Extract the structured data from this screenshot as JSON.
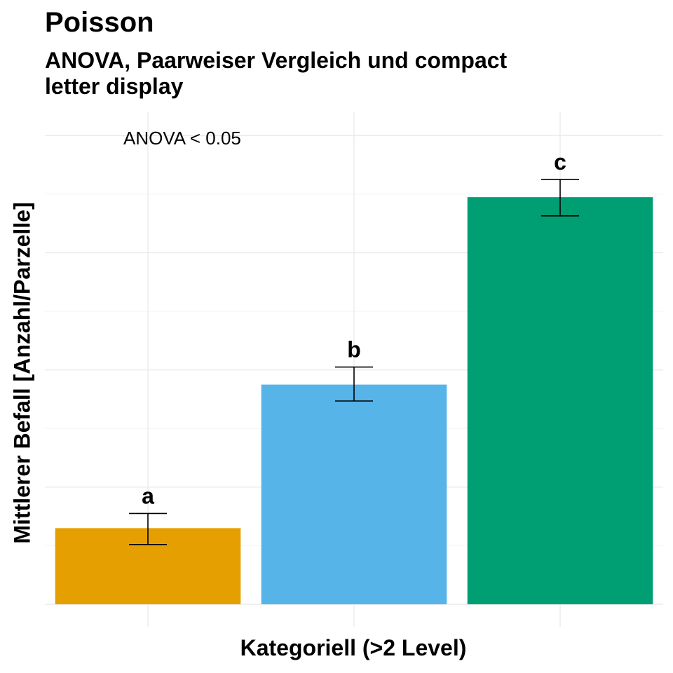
{
  "header": {
    "title": "Poisson",
    "subtitle": "ANOVA, Paarweiser Vergleich und compact letter display"
  },
  "chart_data": {
    "type": "bar",
    "title": "Poisson",
    "subtitle": "ANOVA, Paarweiser Vergleich und compact letter display",
    "xlabel": "Kategoriell (>2 Level)",
    "ylabel": "Mittlerer Befall [Anzahl/Parzelle]",
    "categories": [
      "",
      "",
      ""
    ],
    "values": [
      1.3,
      3.75,
      6.95
    ],
    "error_low": [
      1.02,
      3.47,
      6.63
    ],
    "error_high": [
      1.55,
      4.05,
      7.25
    ],
    "letters": [
      "a",
      "b",
      "c"
    ],
    "colors": [
      "#E69F00",
      "#56B4E9",
      "#009E73"
    ],
    "annotation": "ANOVA < 0.05",
    "ylim": [
      0,
      8.4
    ],
    "grid": true,
    "y_tick_labels_shown": false
  }
}
